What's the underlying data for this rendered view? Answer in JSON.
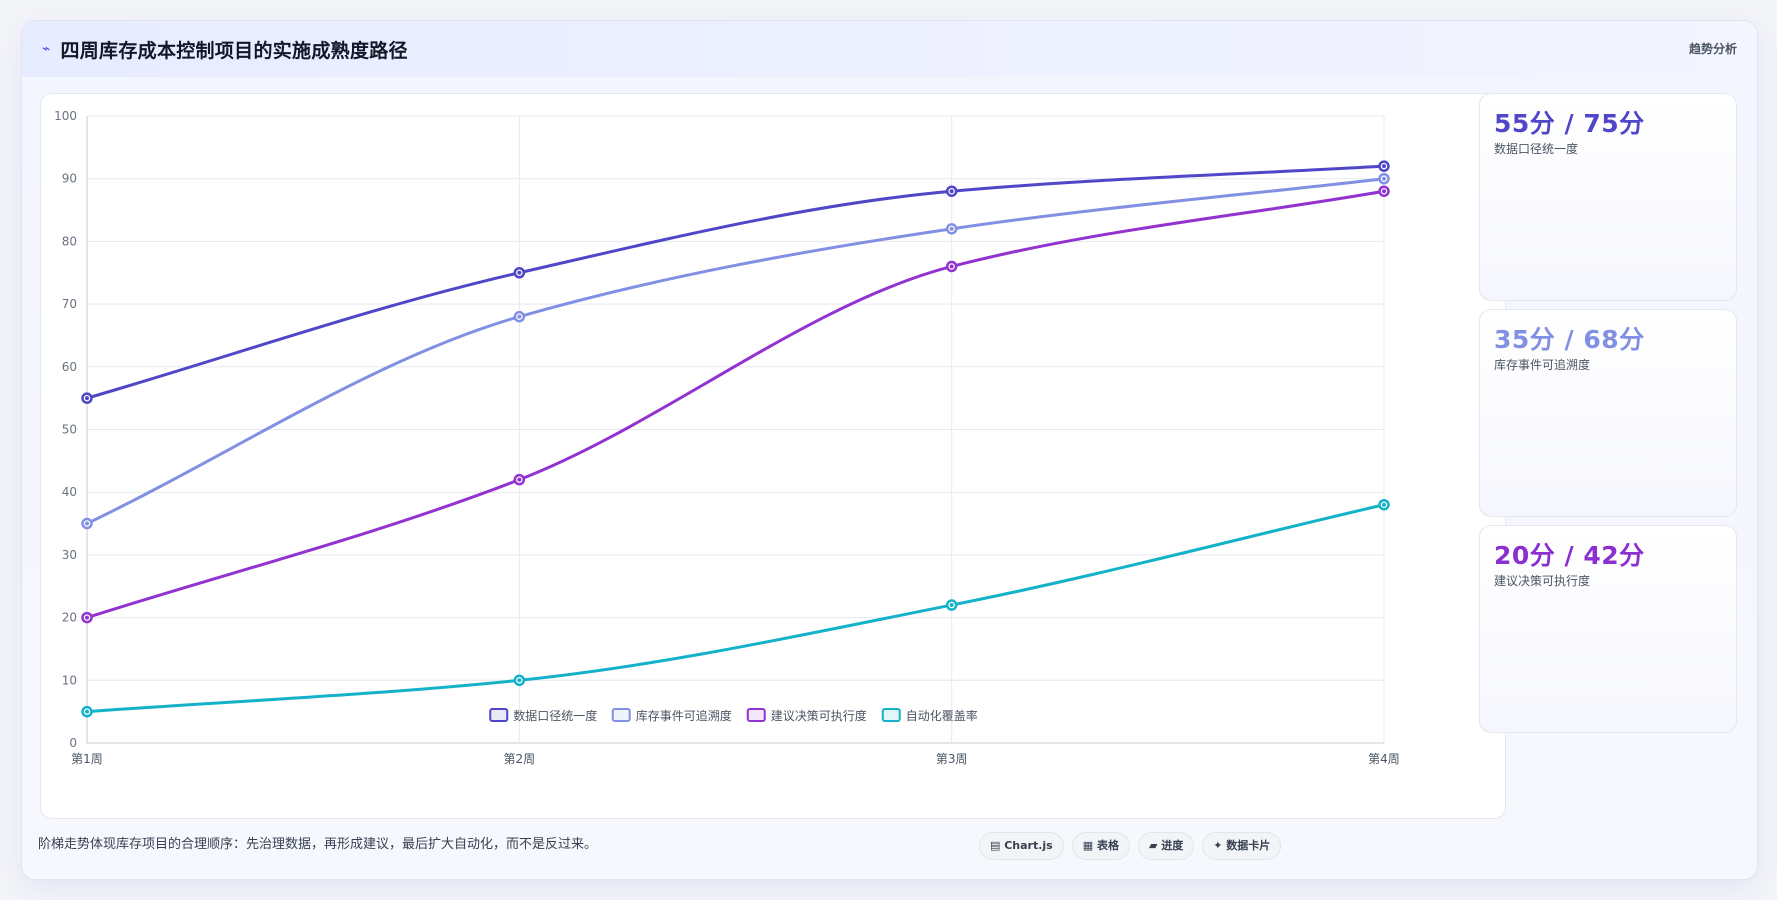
{
  "header": {
    "icon": "zigzag-icon",
    "title": "四周库存成本控制项目的实施成熟度路径",
    "right_label": "趋势分析"
  },
  "chart_data": {
    "type": "line",
    "categories": [
      "第1周",
      "第2周",
      "第3周",
      "第4周"
    ],
    "ylim": [
      0,
      100
    ],
    "yticks": [
      0,
      10,
      20,
      30,
      40,
      50,
      60,
      70,
      80,
      90,
      100
    ],
    "grid": true,
    "legend_position": "bottom-center",
    "series": [
      {
        "name": "数据口径统一度",
        "color": "#4f46c8",
        "values": [
          55,
          75,
          88,
          92
        ]
      },
      {
        "name": "库存事件可追溯度",
        "color": "#8190e3",
        "values": [
          35,
          68,
          82,
          90
        ]
      },
      {
        "name": "建议决策可执行度",
        "color": "#9233d1",
        "values": [
          20,
          42,
          76,
          88
        ]
      },
      {
        "name": "自动化覆盖率",
        "color": "#13b2c9",
        "values": [
          5,
          10,
          22,
          38
        ]
      }
    ]
  },
  "side_cards": [
    {
      "value": "55分 / 75分",
      "label": "数据口径统一度",
      "color": "#4f46c8"
    },
    {
      "value": "35分 / 68分",
      "label": "库存事件可追溯度",
      "color": "#8190e3"
    },
    {
      "value": "20分 / 42分",
      "label": "建议决策可执行度",
      "color": "#8b2fd0"
    }
  ],
  "footer": {
    "note": "阶梯走势体现库存项目的合理顺序：先治理数据，再形成建议，最后扩大自动化，而不是反过来。",
    "badges": [
      "▤ Chart.js",
      "▦ 表格",
      "▰ 进度",
      "✦ 数据卡片"
    ]
  }
}
